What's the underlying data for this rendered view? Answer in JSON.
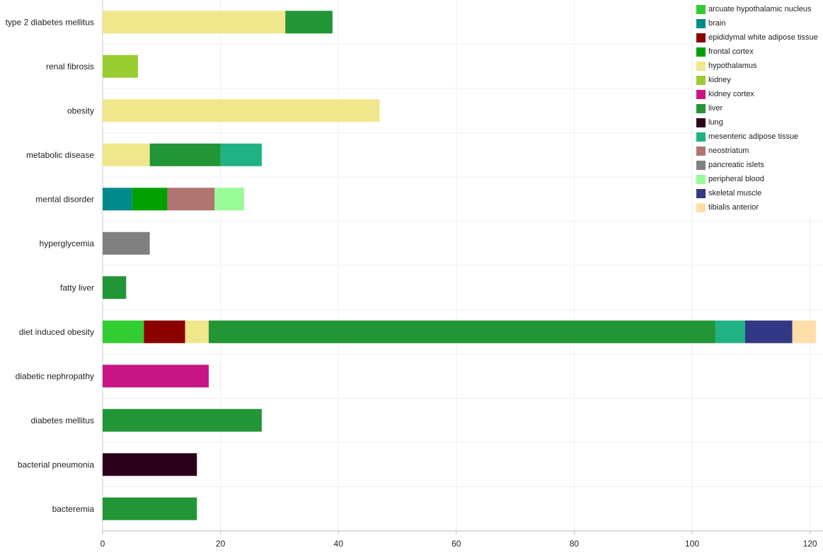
{
  "chart_data": {
    "type": "bar",
    "orientation": "horizontal",
    "stacked": true,
    "title": "",
    "xlabel": "",
    "ylabel": "",
    "xlim": [
      0,
      122
    ],
    "x_ticks": [
      0,
      20,
      40,
      60,
      80,
      100,
      120
    ],
    "grid": true,
    "legend_position": "top-right",
    "categories": [
      "type 2 diabetes mellitus",
      "renal fibrosis",
      "obesity",
      "metabolic disease",
      "mental disorder",
      "hyperglycemia",
      "fatty liver",
      "diet induced obesity",
      "diabetic nephropathy",
      "diabetes mellitus",
      "bacterial pneumonia",
      "bacteremia"
    ],
    "series": [
      {
        "name": "arcuate hypothalamic nucleus",
        "color": "#32cd32",
        "values": [
          0,
          0,
          0,
          0,
          0,
          0,
          0,
          7,
          0,
          0,
          0,
          0
        ]
      },
      {
        "name": "brain",
        "color": "#008b8b",
        "values": [
          0,
          0,
          0,
          0,
          5,
          0,
          0,
          0,
          0,
          0,
          0,
          0
        ]
      },
      {
        "name": "epididymal white adipose tissue",
        "color": "#8b0000",
        "values": [
          0,
          0,
          0,
          0,
          0,
          0,
          0,
          7,
          0,
          0,
          0,
          0
        ]
      },
      {
        "name": "frontal cortex",
        "color": "#00a000",
        "values": [
          0,
          0,
          0,
          0,
          6,
          0,
          0,
          0,
          0,
          0,
          0,
          0
        ]
      },
      {
        "name": "hypothalamus",
        "color": "#f0e68c",
        "values": [
          31,
          0,
          47,
          8,
          0,
          0,
          0,
          4,
          0,
          0,
          0,
          0
        ]
      },
      {
        "name": "kidney",
        "color": "#9acd32",
        "values": [
          0,
          6,
          0,
          0,
          0,
          0,
          0,
          0,
          0,
          0,
          0,
          0
        ]
      },
      {
        "name": "kidney cortex",
        "color": "#c71585",
        "values": [
          0,
          0,
          0,
          0,
          0,
          0,
          0,
          0,
          18,
          0,
          0,
          0
        ]
      },
      {
        "name": "liver",
        "color": "#229536",
        "values": [
          8,
          0,
          0,
          12,
          0,
          0,
          4,
          86,
          0,
          27,
          0,
          16
        ]
      },
      {
        "name": "lung",
        "color": "#2b001a",
        "values": [
          0,
          0,
          0,
          0,
          0,
          0,
          0,
          0,
          0,
          0,
          16,
          0
        ]
      },
      {
        "name": "mesenteric adipose tissue",
        "color": "#20b185",
        "values": [
          0,
          0,
          0,
          7,
          0,
          0,
          0,
          5,
          0,
          0,
          0,
          0
        ]
      },
      {
        "name": "neostriatum",
        "color": "#b07570",
        "values": [
          0,
          0,
          0,
          0,
          8,
          0,
          0,
          0,
          0,
          0,
          0,
          0
        ]
      },
      {
        "name": "pancreatic islets",
        "color": "#808080",
        "values": [
          0,
          0,
          0,
          0,
          0,
          8,
          0,
          0,
          0,
          0,
          0,
          0
        ]
      },
      {
        "name": "peripheral blood",
        "color": "#98fb98",
        "values": [
          0,
          0,
          0,
          0,
          5,
          0,
          0,
          0,
          0,
          0,
          0,
          0
        ]
      },
      {
        "name": "skeletal muscle",
        "color": "#323883",
        "values": [
          0,
          0,
          0,
          0,
          0,
          0,
          0,
          8,
          0,
          0,
          0,
          0
        ]
      },
      {
        "name": "tibialis anterior",
        "color": "#ffdeaa",
        "values": [
          0,
          0,
          0,
          0,
          0,
          0,
          0,
          4,
          0,
          0,
          0,
          0
        ]
      }
    ]
  }
}
